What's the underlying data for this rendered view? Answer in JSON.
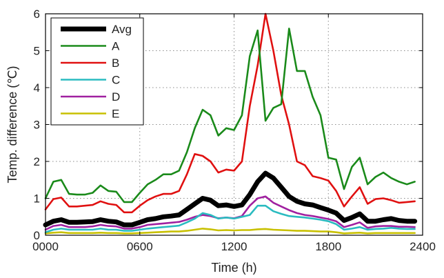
{
  "chart_data": {
    "type": "line",
    "title": "",
    "xlabel": "Time (h)",
    "ylabel": "Temp. difference (℃)",
    "xlim": [
      0,
      24
    ],
    "ylim": [
      0,
      6
    ],
    "xticks": [
      0,
      6,
      12,
      18,
      24
    ],
    "xtick_labels": [
      "0000",
      "0600",
      "1200",
      "1800",
      "2400"
    ],
    "yticks": [
      0,
      1,
      2,
      3,
      4,
      5,
      6
    ],
    "ytick_labels": [
      "0",
      "1",
      "2",
      "3",
      "4",
      "5",
      "6"
    ],
    "grid": true,
    "legend_position": "top-left",
    "x": [
      0,
      0.5,
      1,
      1.5,
      2,
      2.5,
      3,
      3.5,
      4,
      4.5,
      5,
      5.5,
      6,
      6.5,
      7,
      7.5,
      8,
      8.5,
      9,
      9.5,
      10,
      10.5,
      11,
      11.5,
      12,
      12.5,
      13,
      13.5,
      14,
      14.5,
      15,
      15.5,
      16,
      16.5,
      17,
      17.5,
      18,
      18.5,
      19,
      19.5,
      20,
      20.5,
      21,
      21.5,
      22,
      22.5,
      23,
      23.5
    ],
    "series": [
      {
        "name": "Avg",
        "color": "#000000",
        "width": 7,
        "values": [
          0.28,
          0.38,
          0.42,
          0.35,
          0.35,
          0.36,
          0.37,
          0.42,
          0.38,
          0.36,
          0.28,
          0.28,
          0.35,
          0.42,
          0.45,
          0.5,
          0.52,
          0.55,
          0.7,
          0.85,
          1.0,
          0.95,
          0.8,
          0.82,
          0.78,
          0.82,
          1.1,
          1.45,
          1.68,
          1.55,
          1.3,
          1.05,
          0.92,
          0.85,
          0.82,
          0.75,
          0.68,
          0.6,
          0.4,
          0.48,
          0.58,
          0.38,
          0.38,
          0.42,
          0.45,
          0.4,
          0.38,
          0.38
        ]
      },
      {
        "name": "A",
        "color": "#1a8a1a",
        "width": 2.6,
        "values": [
          1.0,
          1.45,
          1.5,
          1.12,
          1.1,
          1.1,
          1.15,
          1.35,
          1.2,
          1.18,
          0.9,
          0.9,
          1.15,
          1.38,
          1.5,
          1.65,
          1.65,
          1.75,
          2.25,
          2.9,
          3.4,
          3.25,
          2.7,
          2.9,
          2.85,
          3.25,
          4.85,
          5.55,
          3.1,
          3.45,
          3.55,
          5.6,
          4.45,
          4.45,
          3.75,
          3.25,
          2.1,
          2.05,
          1.25,
          1.85,
          2.1,
          1.38,
          1.58,
          1.7,
          1.55,
          1.45,
          1.38,
          1.45
        ]
      },
      {
        "name": "B",
        "color": "#e01010",
        "width": 2.6,
        "values": [
          0.7,
          0.98,
          1.02,
          0.78,
          0.78,
          0.8,
          0.82,
          0.92,
          0.85,
          0.82,
          0.62,
          0.62,
          0.8,
          0.95,
          1.05,
          1.12,
          1.12,
          1.2,
          1.65,
          2.2,
          2.15,
          2.0,
          1.7,
          1.78,
          1.75,
          2.0,
          3.5,
          4.6,
          6.0,
          5.0,
          3.8,
          3.0,
          2.0,
          1.9,
          1.6,
          1.55,
          1.48,
          1.2,
          0.78,
          1.05,
          1.3,
          0.85,
          0.98,
          1.0,
          0.95,
          0.88,
          0.9,
          0.92
        ]
      },
      {
        "name": "C",
        "color": "#2abbc0",
        "width": 2.6,
        "values": [
          0.08,
          0.15,
          0.18,
          0.15,
          0.15,
          0.15,
          0.15,
          0.18,
          0.15,
          0.15,
          0.12,
          0.12,
          0.15,
          0.18,
          0.2,
          0.22,
          0.24,
          0.26,
          0.35,
          0.45,
          0.6,
          0.55,
          0.45,
          0.48,
          0.45,
          0.5,
          0.55,
          0.8,
          0.8,
          0.65,
          0.58,
          0.52,
          0.5,
          0.48,
          0.45,
          0.42,
          0.38,
          0.3,
          0.15,
          0.18,
          0.22,
          0.15,
          0.17,
          0.18,
          0.2,
          0.18,
          0.17,
          0.17
        ]
      },
      {
        "name": "D",
        "color": "#a020a0",
        "width": 2.6,
        "values": [
          0.15,
          0.25,
          0.28,
          0.22,
          0.22,
          0.22,
          0.24,
          0.28,
          0.25,
          0.24,
          0.18,
          0.18,
          0.22,
          0.28,
          0.3,
          0.32,
          0.34,
          0.36,
          0.42,
          0.5,
          0.55,
          0.52,
          0.46,
          0.48,
          0.46,
          0.52,
          0.8,
          1.0,
          1.05,
          0.88,
          0.78,
          0.68,
          0.6,
          0.55,
          0.52,
          0.48,
          0.44,
          0.38,
          0.22,
          0.28,
          0.35,
          0.2,
          0.24,
          0.25,
          0.25,
          0.23,
          0.23,
          0.22
        ]
      },
      {
        "name": "E",
        "color": "#c8c000",
        "width": 2.6,
        "values": [
          0.05,
          0.07,
          0.08,
          0.06,
          0.06,
          0.06,
          0.06,
          0.07,
          0.06,
          0.06,
          0.05,
          0.05,
          0.06,
          0.07,
          0.08,
          0.09,
          0.1,
          0.1,
          0.12,
          0.15,
          0.18,
          0.16,
          0.13,
          0.14,
          0.13,
          0.14,
          0.14,
          0.16,
          0.17,
          0.15,
          0.14,
          0.13,
          0.12,
          0.12,
          0.11,
          0.1,
          0.1,
          0.08,
          0.05,
          0.06,
          0.07,
          0.05,
          0.06,
          0.06,
          0.06,
          0.06,
          0.06,
          0.06
        ]
      }
    ]
  }
}
